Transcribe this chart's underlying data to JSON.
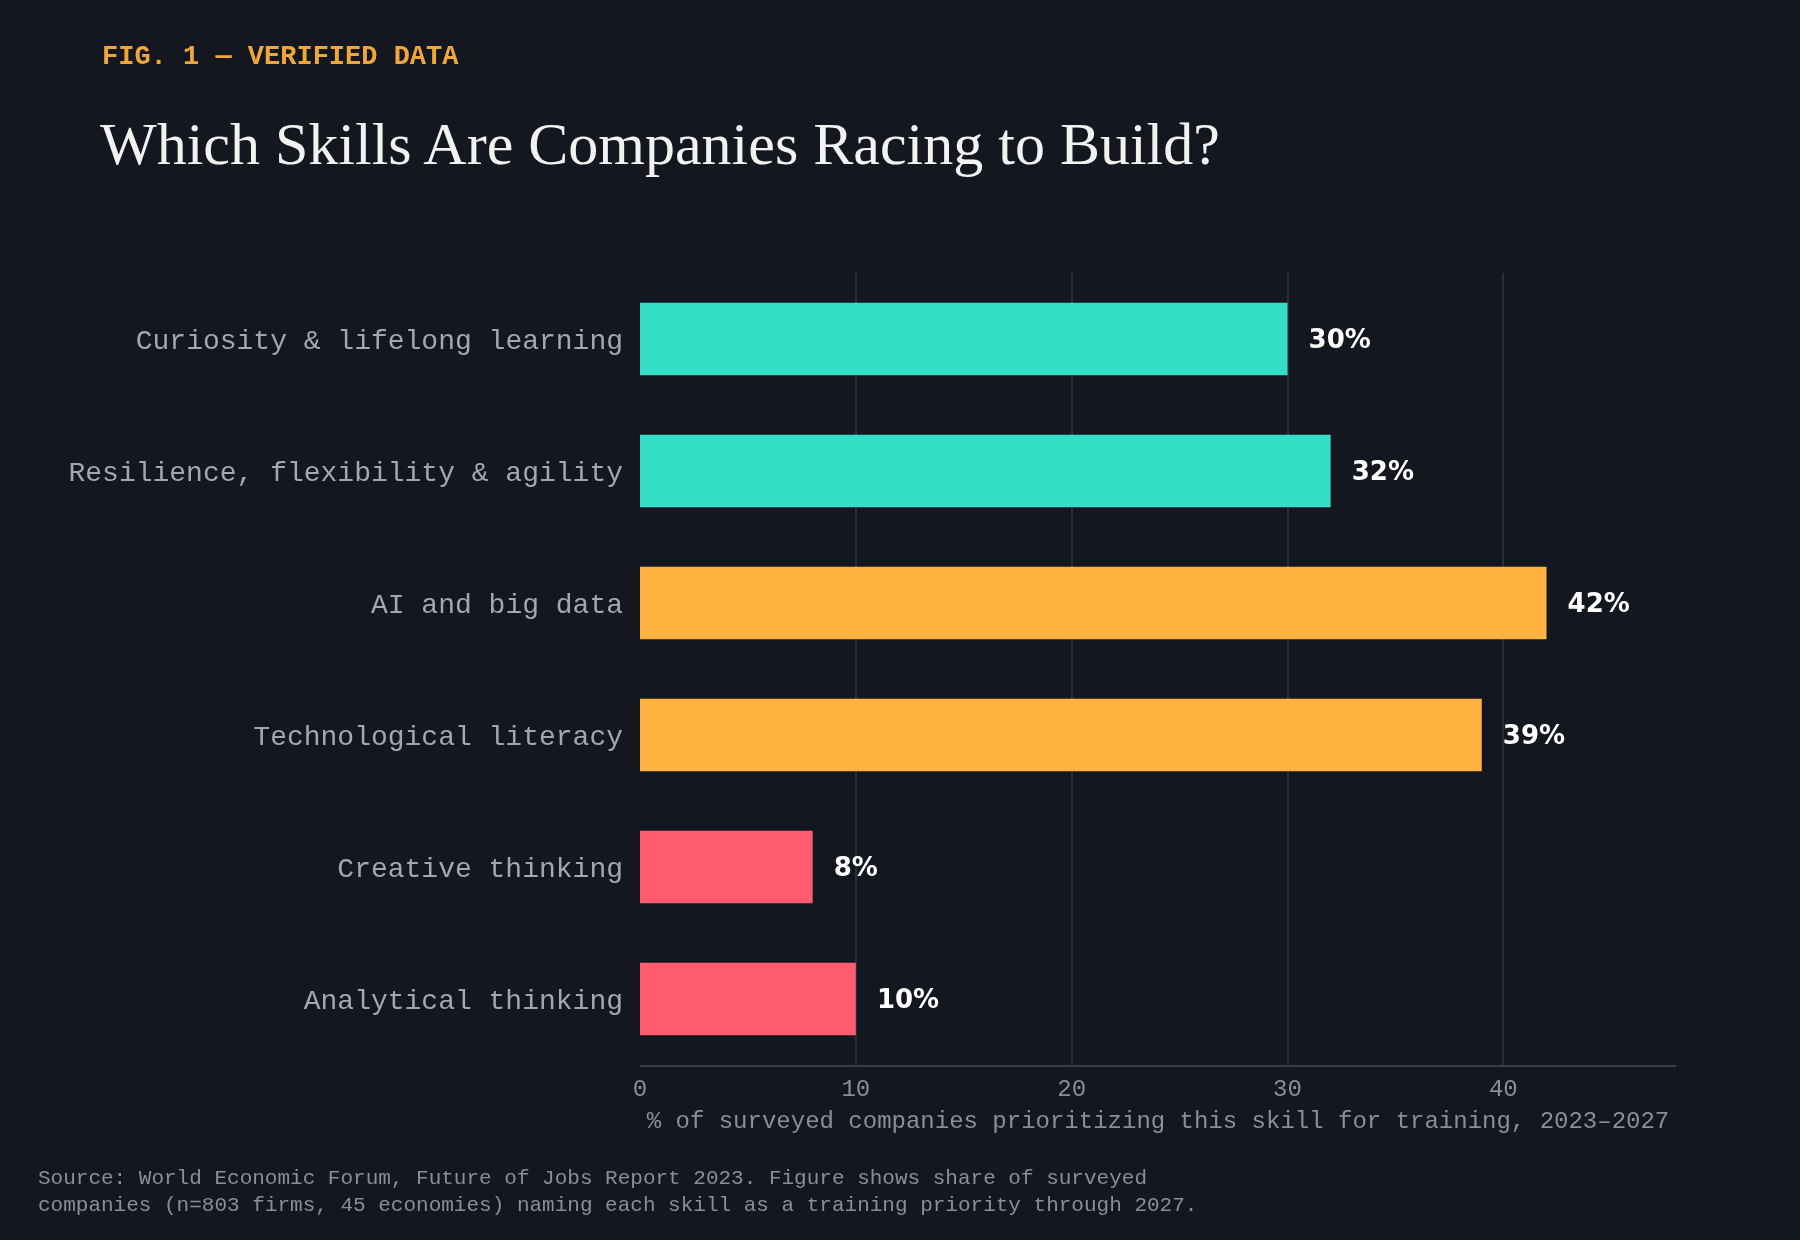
{
  "chart_data": {
    "type": "bar",
    "orientation": "horizontal",
    "subtitle": "FIG. 1 — VERIFIED DATA",
    "title": "Which Skills Are Companies Racing to Build?",
    "categories": [
      "Curiosity & lifelong learning",
      "Resilience, flexibility & agility",
      "AI and big data",
      "Technological literacy",
      "Creative thinking",
      "Analytical thinking"
    ],
    "values": [
      30,
      32,
      42,
      39,
      8,
      10
    ],
    "colors": [
      "#34dfc6",
      "#34dfc6",
      "#ffb23f",
      "#ffb23f",
      "#ff5c6f",
      "#ff5c6f"
    ],
    "value_labels": [
      "30%",
      "32%",
      "42%",
      "39%",
      "8%",
      "10%"
    ],
    "xlim": [
      0,
      48
    ],
    "xticks": [
      0,
      10,
      20,
      30,
      40
    ],
    "grid": "x",
    "xlabel": "% of surveyed companies prioritizing this skill for training, 2023–2027",
    "annotations": [
      "Source: World Economic Forum, Future of Jobs Report 2023. Figure shows share of surveyed companies (n=803 firms, 45 economies) naming each skill as a training priority through 2027."
    ]
  }
}
